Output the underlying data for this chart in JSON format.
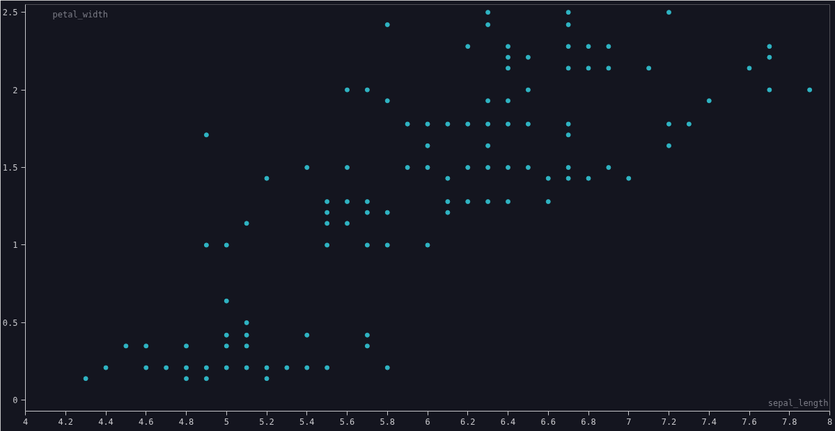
{
  "chart_data": {
    "type": "scatter",
    "xlabel": "sepal_length",
    "ylabel": "petal_width",
    "xlim": [
      4,
      8
    ],
    "ylim": [
      -0.07,
      2.55
    ],
    "xticks": [
      4,
      4.2,
      4.4,
      4.6,
      4.8,
      5,
      5.2,
      5.4,
      5.6,
      5.8,
      6,
      6.2,
      6.4,
      6.6,
      6.8,
      7,
      7.2,
      7.4,
      7.6,
      7.8,
      8
    ],
    "yticks": [
      0,
      0.5,
      1,
      1.5,
      2,
      2.5
    ],
    "grid": false,
    "marker": "circle",
    "series": [
      {
        "color": "#2fb3c2",
        "x": [
          4.3,
          4.4,
          4.5,
          4.6,
          4.6,
          4.7,
          4.8,
          4.8,
          4.8,
          4.9,
          4.9,
          4.9,
          4.9,
          5.0,
          5.0,
          5.0,
          5.0,
          5.0,
          5.1,
          5.1,
          5.1,
          5.1,
          5.1,
          5.2,
          5.2,
          5.2,
          5.3,
          5.4,
          5.4,
          5.4,
          5.5,
          5.5,
          5.5,
          5.5,
          5.5,
          5.6,
          5.6,
          5.6,
          5.6,
          5.7,
          5.7,
          5.7,
          5.7,
          5.7,
          5.7,
          5.8,
          5.8,
          5.8,
          5.8,
          5.8,
          5.9,
          5.9,
          6.0,
          6.0,
          6.0,
          6.0,
          6.1,
          6.1,
          6.1,
          6.1,
          6.2,
          6.2,
          6.2,
          6.2,
          6.3,
          6.3,
          6.3,
          6.3,
          6.3,
          6.3,
          6.3,
          6.4,
          6.4,
          6.4,
          6.4,
          6.4,
          6.4,
          6.4,
          6.5,
          6.5,
          6.5,
          6.5,
          6.6,
          6.6,
          6.7,
          6.7,
          6.7,
          6.7,
          6.7,
          6.7,
          6.7,
          6.7,
          6.8,
          6.8,
          6.8,
          6.9,
          6.9,
          6.9,
          7.0,
          7.1,
          7.2,
          7.2,
          7.2,
          7.3,
          7.4,
          7.6,
          7.7,
          7.7,
          7.7,
          7.9
        ],
        "values": [
          0.14,
          0.21,
          0.35,
          0.35,
          0.21,
          0.21,
          0.35,
          0.21,
          0.14,
          1.71,
          1.0,
          0.21,
          0.14,
          1.0,
          0.64,
          0.42,
          0.35,
          0.21,
          1.14,
          0.5,
          0.42,
          0.35,
          0.21,
          1.43,
          0.21,
          0.14,
          0.21,
          1.5,
          0.42,
          0.21,
          1.28,
          1.21,
          1.14,
          1.0,
          0.21,
          2.0,
          1.5,
          1.28,
          1.14,
          2.0,
          1.28,
          1.21,
          1.0,
          0.42,
          0.35,
          2.42,
          1.93,
          1.21,
          1.0,
          0.21,
          1.78,
          1.5,
          1.78,
          1.64,
          1.5,
          1.0,
          1.78,
          1.43,
          1.28,
          1.21,
          2.28,
          1.78,
          1.5,
          1.28,
          2.5,
          2.42,
          1.93,
          1.78,
          1.64,
          1.5,
          1.28,
          2.28,
          2.21,
          2.14,
          1.93,
          1.78,
          1.5,
          1.28,
          2.21,
          2.0,
          1.78,
          1.5,
          1.43,
          1.28,
          2.5,
          2.42,
          2.28,
          2.14,
          1.78,
          1.71,
          1.5,
          1.43,
          2.28,
          2.14,
          1.43,
          2.28,
          2.14,
          1.5,
          1.43,
          2.14,
          2.5,
          1.78,
          1.64,
          1.78,
          1.93,
          2.14,
          2.28,
          2.21,
          2.0,
          2.0
        ]
      }
    ]
  }
}
